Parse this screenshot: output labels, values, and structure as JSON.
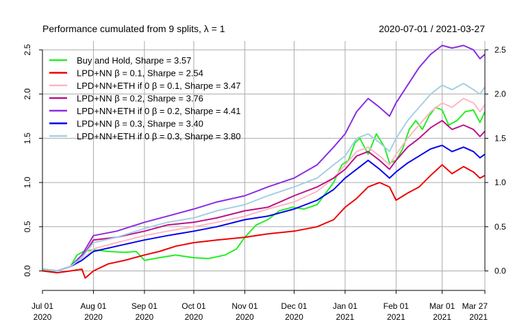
{
  "chart_data": {
    "type": "line",
    "title": "Performance cumulated from 9 splits, λ = 1",
    "date_range": "2020-07-01 / 2021-03-27",
    "x_ticks": [
      {
        "date": "2020-07-01",
        "month": "Jul 01",
        "year": "2020"
      },
      {
        "date": "2020-08-01",
        "month": "Aug 01",
        "year": "2020"
      },
      {
        "date": "2020-09-01",
        "month": "Sep 01",
        "year": "2020"
      },
      {
        "date": "2020-10-01",
        "month": "Oct 01",
        "year": "2020"
      },
      {
        "date": "2020-11-01",
        "month": "Nov 01",
        "year": "2020"
      },
      {
        "date": "2020-12-01",
        "month": "Dec 01",
        "year": "2020"
      },
      {
        "date": "2021-01-01",
        "month": "Jan 01",
        "year": "2021"
      },
      {
        "date": "2021-02-01",
        "month": "Feb 01",
        "year": "2021"
      },
      {
        "date": "2021-03-01",
        "month": "Mar 01",
        "year": "2021"
      },
      {
        "date": "2021-03-27",
        "month": "Mar 27",
        "year": "2021"
      }
    ],
    "y_ticks": [
      0.0,
      0.5,
      1.0,
      1.5,
      2.0,
      2.5
    ],
    "ylim": [
      -0.22,
      2.6
    ],
    "xlim": [
      "2020-07-01",
      "2021-03-27"
    ],
    "grid": true,
    "legend_position": "top-left",
    "series": [
      {
        "name": "Buy and Hold, Sharpe = 3.57",
        "color": "#22EE22",
        "points": [
          [
            "2020-07-01",
            0.0
          ],
          [
            "2020-07-10",
            0.0
          ],
          [
            "2020-07-18",
            0.05
          ],
          [
            "2020-07-22",
            0.18
          ],
          [
            "2020-07-26",
            0.22
          ],
          [
            "2020-08-01",
            0.24
          ],
          [
            "2020-08-10",
            0.22
          ],
          [
            "2020-08-20",
            0.21
          ],
          [
            "2020-08-27",
            0.22
          ],
          [
            "2020-09-01",
            0.12
          ],
          [
            "2020-09-10",
            0.15
          ],
          [
            "2020-09-20",
            0.18
          ],
          [
            "2020-10-01",
            0.15
          ],
          [
            "2020-10-10",
            0.14
          ],
          [
            "2020-10-20",
            0.18
          ],
          [
            "2020-10-27",
            0.25
          ],
          [
            "2020-11-01",
            0.38
          ],
          [
            "2020-11-08",
            0.52
          ],
          [
            "2020-11-15",
            0.58
          ],
          [
            "2020-11-22",
            0.68
          ],
          [
            "2020-11-30",
            0.72
          ],
          [
            "2020-12-07",
            0.7
          ],
          [
            "2020-12-15",
            0.75
          ],
          [
            "2020-12-25",
            1.0
          ],
          [
            "2020-12-30",
            1.2
          ],
          [
            "2021-01-03",
            1.25
          ],
          [
            "2021-01-07",
            1.45
          ],
          [
            "2021-01-10",
            1.5
          ],
          [
            "2021-01-15",
            1.32
          ],
          [
            "2021-01-20",
            1.55
          ],
          [
            "2021-01-25",
            1.4
          ],
          [
            "2021-01-28",
            1.22
          ],
          [
            "2021-02-01",
            1.25
          ],
          [
            "2021-02-05",
            1.38
          ],
          [
            "2021-02-09",
            1.6
          ],
          [
            "2021-02-13",
            1.7
          ],
          [
            "2021-02-17",
            1.6
          ],
          [
            "2021-02-21",
            1.75
          ],
          [
            "2021-02-25",
            1.85
          ],
          [
            "2021-03-01",
            1.82
          ],
          [
            "2021-03-05",
            1.65
          ],
          [
            "2021-03-10",
            1.7
          ],
          [
            "2021-03-15",
            1.8
          ],
          [
            "2021-03-20",
            1.82
          ],
          [
            "2021-03-24",
            1.68
          ],
          [
            "2021-03-27",
            1.8
          ]
        ]
      },
      {
        "name": "LPD+NN β = 0.1, Sharpe = 2.54",
        "color": "#EE0000",
        "points": [
          [
            "2020-07-01",
            0.0
          ],
          [
            "2020-07-10",
            -0.02
          ],
          [
            "2020-07-18",
            0.0
          ],
          [
            "2020-07-25",
            0.02
          ],
          [
            "2020-07-27",
            -0.08
          ],
          [
            "2020-08-01",
            0.0
          ],
          [
            "2020-08-10",
            0.08
          ],
          [
            "2020-08-20",
            0.12
          ],
          [
            "2020-09-01",
            0.18
          ],
          [
            "2020-09-10",
            0.22
          ],
          [
            "2020-09-20",
            0.28
          ],
          [
            "2020-10-01",
            0.32
          ],
          [
            "2020-10-15",
            0.35
          ],
          [
            "2020-11-01",
            0.38
          ],
          [
            "2020-11-15",
            0.42
          ],
          [
            "2020-12-01",
            0.45
          ],
          [
            "2020-12-15",
            0.5
          ],
          [
            "2020-12-25",
            0.58
          ],
          [
            "2021-01-01",
            0.72
          ],
          [
            "2021-01-08",
            0.82
          ],
          [
            "2021-01-15",
            0.95
          ],
          [
            "2021-01-22",
            1.0
          ],
          [
            "2021-01-28",
            0.95
          ],
          [
            "2021-02-01",
            0.8
          ],
          [
            "2021-02-08",
            0.88
          ],
          [
            "2021-02-15",
            0.95
          ],
          [
            "2021-02-22",
            1.08
          ],
          [
            "2021-03-01",
            1.2
          ],
          [
            "2021-03-07",
            1.1
          ],
          [
            "2021-03-14",
            1.18
          ],
          [
            "2021-03-20",
            1.12
          ],
          [
            "2021-03-24",
            1.05
          ],
          [
            "2021-03-27",
            1.08
          ]
        ]
      },
      {
        "name": "LPD+NN+ETH if 0 β = 0.1, Sharpe = 3.47",
        "color": "#FFB6C1",
        "points": [
          [
            "2020-07-01",
            0.02
          ],
          [
            "2020-07-10",
            0.0
          ],
          [
            "2020-07-18",
            0.05
          ],
          [
            "2020-07-25",
            0.12
          ],
          [
            "2020-08-01",
            0.25
          ],
          [
            "2020-08-15",
            0.32
          ],
          [
            "2020-09-01",
            0.4
          ],
          [
            "2020-09-15",
            0.45
          ],
          [
            "2020-10-01",
            0.5
          ],
          [
            "2020-10-15",
            0.55
          ],
          [
            "2020-11-01",
            0.62
          ],
          [
            "2020-11-15",
            0.7
          ],
          [
            "2020-12-01",
            0.78
          ],
          [
            "2020-12-15",
            0.9
          ],
          [
            "2020-12-25",
            1.05
          ],
          [
            "2021-01-01",
            1.2
          ],
          [
            "2021-01-08",
            1.35
          ],
          [
            "2021-01-15",
            1.4
          ],
          [
            "2021-01-22",
            1.3
          ],
          [
            "2021-01-28",
            1.2
          ],
          [
            "2021-02-01",
            1.32
          ],
          [
            "2021-02-08",
            1.5
          ],
          [
            "2021-02-15",
            1.65
          ],
          [
            "2021-02-22",
            1.8
          ],
          [
            "2021-03-01",
            1.9
          ],
          [
            "2021-03-07",
            1.85
          ],
          [
            "2021-03-14",
            1.95
          ],
          [
            "2021-03-20",
            1.9
          ],
          [
            "2021-03-24",
            1.8
          ],
          [
            "2021-03-27",
            1.88
          ]
        ]
      },
      {
        "name": "LPD+NN β = 0.2, Sharpe = 3.76",
        "color": "#BB1188",
        "points": [
          [
            "2020-07-01",
            0.02
          ],
          [
            "2020-07-10",
            0.0
          ],
          [
            "2020-07-18",
            0.05
          ],
          [
            "2020-07-25",
            0.15
          ],
          [
            "2020-08-01",
            0.35
          ],
          [
            "2020-08-15",
            0.38
          ],
          [
            "2020-09-01",
            0.45
          ],
          [
            "2020-09-15",
            0.52
          ],
          [
            "2020-10-01",
            0.55
          ],
          [
            "2020-10-15",
            0.6
          ],
          [
            "2020-11-01",
            0.68
          ],
          [
            "2020-11-15",
            0.72
          ],
          [
            "2020-12-01",
            0.85
          ],
          [
            "2020-12-15",
            0.95
          ],
          [
            "2020-12-25",
            1.05
          ],
          [
            "2021-01-01",
            1.15
          ],
          [
            "2021-01-08",
            1.3
          ],
          [
            "2021-01-15",
            1.35
          ],
          [
            "2021-01-22",
            1.25
          ],
          [
            "2021-01-28",
            1.15
          ],
          [
            "2021-02-01",
            1.25
          ],
          [
            "2021-02-08",
            1.4
          ],
          [
            "2021-02-15",
            1.5
          ],
          [
            "2021-02-22",
            1.62
          ],
          [
            "2021-03-01",
            1.7
          ],
          [
            "2021-03-07",
            1.6
          ],
          [
            "2021-03-14",
            1.65
          ],
          [
            "2021-03-20",
            1.6
          ],
          [
            "2021-03-24",
            1.52
          ],
          [
            "2021-03-27",
            1.58
          ]
        ]
      },
      {
        "name": "LPD+NN+ETH if 0 β = 0.2, Sharpe = 4.41",
        "color": "#8A2BE2",
        "points": [
          [
            "2020-07-01",
            0.02
          ],
          [
            "2020-07-10",
            0.0
          ],
          [
            "2020-07-18",
            0.05
          ],
          [
            "2020-07-25",
            0.18
          ],
          [
            "2020-08-01",
            0.4
          ],
          [
            "2020-08-15",
            0.45
          ],
          [
            "2020-09-01",
            0.55
          ],
          [
            "2020-09-15",
            0.62
          ],
          [
            "2020-10-01",
            0.7
          ],
          [
            "2020-10-15",
            0.78
          ],
          [
            "2020-11-01",
            0.85
          ],
          [
            "2020-11-15",
            0.95
          ],
          [
            "2020-12-01",
            1.05
          ],
          [
            "2020-12-15",
            1.2
          ],
          [
            "2020-12-25",
            1.4
          ],
          [
            "2021-01-01",
            1.55
          ],
          [
            "2021-01-08",
            1.8
          ],
          [
            "2021-01-15",
            1.95
          ],
          [
            "2021-01-22",
            1.85
          ],
          [
            "2021-01-28",
            1.75
          ],
          [
            "2021-02-01",
            1.9
          ],
          [
            "2021-02-08",
            2.1
          ],
          [
            "2021-02-15",
            2.3
          ],
          [
            "2021-02-22",
            2.45
          ],
          [
            "2021-03-01",
            2.55
          ],
          [
            "2021-03-07",
            2.52
          ],
          [
            "2021-03-14",
            2.55
          ],
          [
            "2021-03-20",
            2.5
          ],
          [
            "2021-03-24",
            2.4
          ],
          [
            "2021-03-27",
            2.45
          ]
        ]
      },
      {
        "name": "LPD+NN β = 0.3, Sharpe = 3.40",
        "color": "#0000EE",
        "points": [
          [
            "2020-07-01",
            0.02
          ],
          [
            "2020-07-10",
            0.0
          ],
          [
            "2020-07-18",
            0.05
          ],
          [
            "2020-07-25",
            0.12
          ],
          [
            "2020-08-01",
            0.22
          ],
          [
            "2020-08-15",
            0.28
          ],
          [
            "2020-09-01",
            0.35
          ],
          [
            "2020-09-15",
            0.4
          ],
          [
            "2020-10-01",
            0.45
          ],
          [
            "2020-10-15",
            0.5
          ],
          [
            "2020-11-01",
            0.58
          ],
          [
            "2020-11-15",
            0.62
          ],
          [
            "2020-12-01",
            0.7
          ],
          [
            "2020-12-15",
            0.8
          ],
          [
            "2020-12-25",
            0.92
          ],
          [
            "2021-01-01",
            1.05
          ],
          [
            "2021-01-08",
            1.15
          ],
          [
            "2021-01-15",
            1.25
          ],
          [
            "2021-01-22",
            1.15
          ],
          [
            "2021-01-28",
            1.05
          ],
          [
            "2021-02-01",
            1.12
          ],
          [
            "2021-02-08",
            1.22
          ],
          [
            "2021-02-15",
            1.3
          ],
          [
            "2021-02-22",
            1.38
          ],
          [
            "2021-03-01",
            1.42
          ],
          [
            "2021-03-07",
            1.35
          ],
          [
            "2021-03-14",
            1.4
          ],
          [
            "2021-03-20",
            1.35
          ],
          [
            "2021-03-24",
            1.28
          ],
          [
            "2021-03-27",
            1.32
          ]
        ]
      },
      {
        "name": "LPD+NN+ETH if 0 β = 0.3, Sharpe = 3.80",
        "color": "#A6CEE3",
        "points": [
          [
            "2020-07-01",
            0.02
          ],
          [
            "2020-07-10",
            0.0
          ],
          [
            "2020-07-18",
            0.05
          ],
          [
            "2020-07-25",
            0.15
          ],
          [
            "2020-08-01",
            0.32
          ],
          [
            "2020-08-15",
            0.38
          ],
          [
            "2020-09-01",
            0.48
          ],
          [
            "2020-09-15",
            0.55
          ],
          [
            "2020-10-01",
            0.6
          ],
          [
            "2020-10-15",
            0.68
          ],
          [
            "2020-11-01",
            0.75
          ],
          [
            "2020-11-15",
            0.85
          ],
          [
            "2020-12-01",
            0.95
          ],
          [
            "2020-12-15",
            1.05
          ],
          [
            "2020-12-25",
            1.2
          ],
          [
            "2021-01-01",
            1.3
          ],
          [
            "2021-01-08",
            1.5
          ],
          [
            "2021-01-15",
            1.55
          ],
          [
            "2021-01-22",
            1.45
          ],
          [
            "2021-01-28",
            1.35
          ],
          [
            "2021-02-01",
            1.5
          ],
          [
            "2021-02-08",
            1.7
          ],
          [
            "2021-02-15",
            1.85
          ],
          [
            "2021-02-22",
            2.0
          ],
          [
            "2021-03-01",
            2.1
          ],
          [
            "2021-03-07",
            2.05
          ],
          [
            "2021-03-14",
            2.12
          ],
          [
            "2021-03-20",
            2.05
          ],
          [
            "2021-03-24",
            2.0
          ],
          [
            "2021-03-27",
            2.08
          ]
        ]
      }
    ]
  }
}
